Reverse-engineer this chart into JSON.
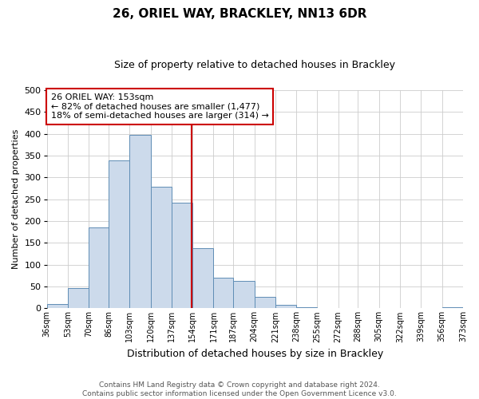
{
  "title": "26, ORIEL WAY, BRACKLEY, NN13 6DR",
  "subtitle": "Size of property relative to detached houses in Brackley",
  "xlabel": "Distribution of detached houses by size in Brackley",
  "ylabel": "Number of detached properties",
  "bar_edges": [
    36,
    53,
    70,
    86,
    103,
    120,
    137,
    154,
    171,
    187,
    204,
    221,
    238,
    255,
    272,
    288,
    305,
    322,
    339,
    356,
    373
  ],
  "bar_heights": [
    10,
    47,
    185,
    338,
    398,
    278,
    242,
    137,
    70,
    63,
    26,
    8,
    3,
    1,
    1,
    1,
    0,
    0,
    0,
    2
  ],
  "bar_color": "#ccdaeb",
  "bar_edge_color": "#5f8db5",
  "property_line_x": 153,
  "property_line_color": "#cc0000",
  "annotation_title": "26 ORIEL WAY: 153sqm",
  "annotation_line1": "← 82% of detached houses are smaller (1,477)",
  "annotation_line2": "18% of semi-detached houses are larger (314) →",
  "ylim": [
    0,
    500
  ],
  "yticks": [
    0,
    50,
    100,
    150,
    200,
    250,
    300,
    350,
    400,
    450,
    500
  ],
  "tick_labels": [
    "36sqm",
    "53sqm",
    "70sqm",
    "86sqm",
    "103sqm",
    "120sqm",
    "137sqm",
    "154sqm",
    "171sqm",
    "187sqm",
    "204sqm",
    "221sqm",
    "238sqm",
    "255sqm",
    "272sqm",
    "288sqm",
    "305sqm",
    "322sqm",
    "339sqm",
    "356sqm",
    "373sqm"
  ],
  "footer_line1": "Contains HM Land Registry data © Crown copyright and database right 2024.",
  "footer_line2": "Contains public sector information licensed under the Open Government Licence v3.0.",
  "background_color": "#ffffff",
  "grid_color": "#cccccc",
  "title_fontsize": 11,
  "subtitle_fontsize": 9,
  "ylabel_fontsize": 8,
  "xlabel_fontsize": 9,
  "ytick_fontsize": 8,
  "xtick_fontsize": 7,
  "annotation_fontsize": 8,
  "footer_fontsize": 6.5
}
